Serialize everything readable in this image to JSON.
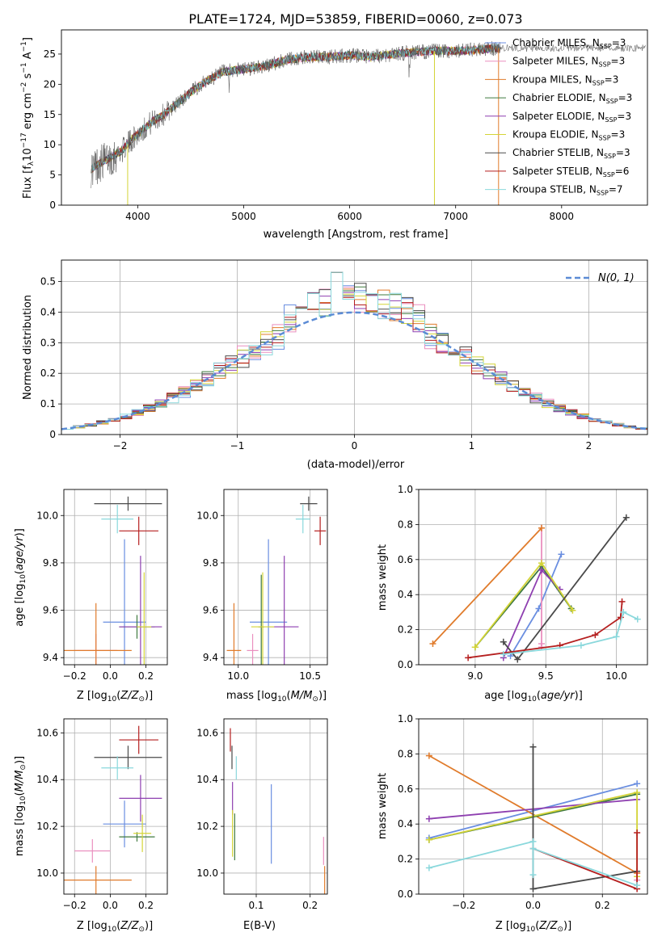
{
  "figure_title": "PLATE=1724, MJD=53859, FIBERID=0060, z=0.073",
  "series_colors": [
    "#6a8ee0",
    "#ea8fbf",
    "#e07b2b",
    "#3f7a3f",
    "#8e3fb0",
    "#d4d437",
    "#4a4a4a",
    "#b51f1f",
    "#8ad8dc"
  ],
  "chart_data": [
    {
      "id": "spectrum",
      "type": "line",
      "xlabel": "wavelength [Angstrom, rest frame]",
      "ylabel": "Flux [f_λ 10^-17 erg cm^-2 s^-1 A^-1]",
      "xlim": [
        3280,
        8810
      ],
      "ylim": [
        0,
        29
      ],
      "xticks": [
        4000,
        5000,
        6000,
        7000,
        8000
      ],
      "yticks": [
        0,
        5,
        10,
        15,
        20,
        25
      ],
      "grid": false,
      "legend_position": "top-right",
      "legend": [
        {
          "model": "Chabrier MILES",
          "n": 3
        },
        {
          "model": "Salpeter MILES",
          "n": 3
        },
        {
          "model": "Kroupa MILES",
          "n": 3
        },
        {
          "model": "Chabrier ELODIE",
          "n": 3
        },
        {
          "model": "Salpeter ELODIE",
          "n": 3
        },
        {
          "model": "Kroupa ELODIE",
          "n": 3
        },
        {
          "model": "Chabrier STELIB",
          "n": 3
        },
        {
          "model": "Salpeter STELIB",
          "n": 6
        },
        {
          "model": "Kroupa STELIB",
          "n": 7
        }
      ],
      "data_continuum": {
        "x": [
          3560,
          3650,
          3750,
          3850,
          3950,
          4050,
          4150,
          4250,
          4350,
          4450,
          4600,
          4800,
          5000,
          5200,
          5400,
          5600,
          5800,
          6000,
          6200,
          6400,
          6600,
          6800,
          7000,
          7200,
          7400
        ],
        "y": [
          6,
          7,
          8,
          9,
          11,
          12.5,
          14,
          15,
          16.5,
          18,
          20,
          22,
          22.5,
          23,
          24,
          24.5,
          24.5,
          24.8,
          24.5,
          25,
          25.3,
          25.5,
          25.5,
          25.7,
          26
        ]
      },
      "drop_lines_x": [
        3905,
        6800,
        7405
      ]
    },
    {
      "id": "residuals",
      "type": "histogram",
      "xlabel": "(data-model)/error",
      "ylabel": "Normed distribution",
      "xlim": [
        -2.5,
        2.5
      ],
      "ylim": [
        0,
        0.57
      ],
      "xticks": [
        -2,
        -1,
        0,
        1,
        2
      ],
      "yticks": [
        0,
        0.1,
        0.2,
        0.3,
        0.4,
        0.5
      ],
      "grid": true,
      "bin_width": 0.1,
      "legend": [
        {
          "label": "N(0, 1)"
        }
      ]
    },
    {
      "id": "age-vs-Z",
      "type": "errorbar",
      "xlabel": "Z [log10(Z/Z⊙)]",
      "ylabel": "age [log10(age/yr)]",
      "xlim": [
        -0.26,
        0.32
      ],
      "ylim": [
        9.37,
        10.11
      ],
      "xticks": [
        -0.2,
        0,
        0.2
      ],
      "yticks": [
        9.4,
        9.6,
        9.8,
        10.0
      ],
      "grid": true,
      "points": [
        {
          "x": 0.08,
          "y": 9.55,
          "xerr": 0.12,
          "yerr": 0.35
        },
        {
          "x": -0.08,
          "y": 9.43,
          "xerr": 0.12,
          "yerr": 0.07
        },
        {
          "x": -0.08,
          "y": 9.43,
          "xerr": 0.2,
          "yerr": 0.2
        },
        {
          "x": 0.15,
          "y": 9.53,
          "xerr": 0.1,
          "yerr": 0.05
        },
        {
          "x": 0.17,
          "y": 9.53,
          "xerr": 0.12,
          "yerr": 0.3
        },
        {
          "x": 0.19,
          "y": 9.53,
          "xerr": 0.04,
          "yerr": 0.23
        },
        {
          "x": 0.1,
          "y": 10.05,
          "xerr": 0.19,
          "yerr": 0.03
        },
        {
          "x": 0.16,
          "y": 9.935,
          "xerr": 0.11,
          "yerr": 0.06
        },
        {
          "x": 0.04,
          "y": 9.985,
          "xerr": 0.09,
          "yerr": 0.06
        }
      ]
    },
    {
      "id": "age-vs-mass",
      "type": "errorbar",
      "xlabel": "mass [log10(M/M⊙)]",
      "ylabel": "",
      "xlim": [
        9.9,
        10.62
      ],
      "ylim": [
        9.37,
        10.11
      ],
      "xticks": [
        10.0,
        10.5
      ],
      "yticks": [
        9.4,
        9.6,
        9.8,
        10.0
      ],
      "grid": true,
      "points": [
        {
          "x": 10.21,
          "y": 9.55,
          "xerr": 0.13,
          "yerr": 0.35
        },
        {
          "x": 10.1,
          "y": 9.43,
          "xerr": 0.04,
          "yerr": 0.07
        },
        {
          "x": 9.97,
          "y": 9.43,
          "xerr": 0.05,
          "yerr": 0.2
        },
        {
          "x": 10.16,
          "y": 9.53,
          "xerr": 0.02,
          "yerr": 0.22
        },
        {
          "x": 10.32,
          "y": 9.53,
          "xerr": 0.1,
          "yerr": 0.3
        },
        {
          "x": 10.17,
          "y": 9.53,
          "xerr": 0.08,
          "yerr": 0.23
        },
        {
          "x": 10.49,
          "y": 10.05,
          "xerr": 0.06,
          "yerr": 0.03
        },
        {
          "x": 10.57,
          "y": 9.935,
          "xerr": 0.04,
          "yerr": 0.06
        },
        {
          "x": 10.45,
          "y": 9.985,
          "xerr": 0.05,
          "yerr": 0.06
        }
      ]
    },
    {
      "id": "weight-vs-age",
      "type": "line",
      "xlabel": "age [log10(age/yr)]",
      "ylabel": "mass weight",
      "xlim": [
        8.6,
        10.22
      ],
      "ylim": [
        0,
        1
      ],
      "xticks": [
        9.0,
        9.5,
        10.0
      ],
      "yticks": [
        0,
        0.2,
        0.4,
        0.6,
        0.8,
        1.0
      ],
      "grid": true,
      "series": [
        {
          "points": [
            [
              9.25,
              0.05
            ],
            [
              9.45,
              0.32
            ],
            [
              9.61,
              0.63
            ]
          ]
        },
        {
          "points": [
            [
              9.47,
              0.78
            ],
            [
              9.47,
              0.1
            ],
            [
              9.47,
              0.12
            ]
          ]
        },
        {
          "points": [
            [
              8.7,
              0.12
            ],
            [
              9.47,
              0.78
            ]
          ]
        },
        {
          "points": [
            [
              9.0,
              0.1
            ],
            [
              9.47,
              0.56
            ],
            [
              9.68,
              0.32
            ]
          ]
        },
        {
          "points": [
            [
              9.2,
              0.04
            ],
            [
              9.47,
              0.54
            ],
            [
              9.6,
              0.43
            ]
          ]
        },
        {
          "points": [
            [
              9.0,
              0.1
            ],
            [
              9.47,
              0.58
            ],
            [
              9.69,
              0.31
            ]
          ]
        },
        {
          "points": [
            [
              9.2,
              0.13
            ],
            [
              9.3,
              0.03
            ],
            [
              10.07,
              0.84
            ]
          ]
        },
        {
          "points": [
            [
              8.95,
              0.04
            ],
            [
              9.6,
              0.11
            ],
            [
              9.85,
              0.17
            ],
            [
              10.03,
              0.27
            ],
            [
              10.04,
              0.36
            ]
          ]
        },
        {
          "points": [
            [
              9.2,
              0.06
            ],
            [
              9.75,
              0.11
            ],
            [
              10.0,
              0.16
            ],
            [
              10.05,
              0.3
            ],
            [
              10.15,
              0.26
            ]
          ]
        }
      ]
    },
    {
      "id": "mass-vs-Z",
      "type": "errorbar",
      "xlabel": "Z [log10(Z/Z⊙)]",
      "ylabel": "mass [log10(M/M⊙)]",
      "xlim": [
        -0.26,
        0.32
      ],
      "ylim": [
        9.91,
        10.66
      ],
      "xticks": [
        -0.2,
        0,
        0.2
      ],
      "yticks": [
        10.0,
        10.2,
        10.4,
        10.6
      ],
      "grid": true,
      "points": [
        {
          "x": 0.08,
          "y": 10.21,
          "xerr": 0.12,
          "yerr": 0.1
        },
        {
          "x": -0.1,
          "y": 10.095,
          "xerr": 0.1,
          "yerr": 0.05
        },
        {
          "x": -0.08,
          "y": 9.97,
          "xerr": 0.2,
          "yerr": 0.06
        },
        {
          "x": 0.15,
          "y": 10.155,
          "xerr": 0.1,
          "yerr": 0.02
        },
        {
          "x": 0.17,
          "y": 10.32,
          "xerr": 0.12,
          "yerr": 0.1
        },
        {
          "x": 0.18,
          "y": 10.17,
          "xerr": 0.05,
          "yerr": 0.08
        },
        {
          "x": 0.1,
          "y": 10.495,
          "xerr": 0.19,
          "yerr": 0.05
        },
        {
          "x": 0.16,
          "y": 10.57,
          "xerr": 0.11,
          "yerr": 0.06
        },
        {
          "x": 0.04,
          "y": 10.45,
          "xerr": 0.09,
          "yerr": 0.05
        }
      ]
    },
    {
      "id": "mass-vs-EBV",
      "type": "errorbar",
      "xlabel": "E(B-V)",
      "ylabel": "",
      "xlim": [
        0.04,
        0.232
      ],
      "ylim": [
        9.91,
        10.66
      ],
      "xticks": [
        0.1,
        0.2
      ],
      "yticks": [
        10.0,
        10.2,
        10.4,
        10.6
      ],
      "grid": true,
      "points": [
        {
          "x": 0.128,
          "y": 10.21,
          "xerr": 0,
          "yerr": 0.17
        },
        {
          "x": 0.225,
          "y": 10.095,
          "xerr": 0,
          "yerr": 0.06
        },
        {
          "x": 0.227,
          "y": 9.97,
          "xerr": 0,
          "yerr": 0.06
        },
        {
          "x": 0.06,
          "y": 10.155,
          "xerr": 0,
          "yerr": 0.1
        },
        {
          "x": 0.056,
          "y": 10.32,
          "xerr": 0,
          "yerr": 0.07
        },
        {
          "x": 0.056,
          "y": 10.17,
          "xerr": 0,
          "yerr": 0.1
        },
        {
          "x": 0.055,
          "y": 10.495,
          "xerr": 0,
          "yerr": 0.05
        },
        {
          "x": 0.052,
          "y": 10.57,
          "xerr": 0,
          "yerr": 0.05
        },
        {
          "x": 0.063,
          "y": 10.45,
          "xerr": 0,
          "yerr": 0.05
        }
      ]
    },
    {
      "id": "weight-vs-Z",
      "type": "line",
      "xlabel": "Z [log10(Z/Z⊙)]",
      "ylabel": "mass weight",
      "xlim": [
        -0.33,
        0.33
      ],
      "ylim": [
        0,
        1
      ],
      "xticks": [
        -0.2,
        0.0,
        0.2
      ],
      "yticks": [
        0,
        0.2,
        0.4,
        0.6,
        0.8,
        1.0
      ],
      "grid": true,
      "series": [
        {
          "points": [
            [
              -0.3,
              0.32
            ],
            [
              0.3,
              0.63
            ]
          ]
        },
        {
          "points": [
            [
              0.3,
              0.12
            ],
            [
              0.3,
              0.08
            ]
          ]
        },
        {
          "points": [
            [
              -0.3,
              0.79
            ],
            [
              0.3,
              0.12
            ]
          ]
        },
        {
          "points": [
            [
              -0.3,
              0.31
            ],
            [
              0.3,
              0.57
            ]
          ]
        },
        {
          "points": [
            [
              -0.3,
              0.43
            ],
            [
              0.3,
              0.54
            ]
          ]
        },
        {
          "points": [
            [
              -0.3,
              0.31
            ],
            [
              0.3,
              0.58
            ],
            [
              0.3,
              0.1
            ]
          ]
        },
        {
          "points": [
            [
              0.0,
              0.84
            ],
            [
              0.0,
              0.03
            ],
            [
              0.3,
              0.13
            ]
          ]
        },
        {
          "points": [
            [
              0.0,
              0.26
            ],
            [
              0.3,
              0.03
            ],
            [
              0.3,
              0.35
            ]
          ]
        },
        {
          "points": [
            [
              -0.3,
              0.15
            ],
            [
              0.0,
              0.3
            ],
            [
              0.0,
              0.11
            ],
            [
              0.0,
              0.26
            ],
            [
              0.3,
              0.05
            ]
          ]
        }
      ]
    }
  ]
}
